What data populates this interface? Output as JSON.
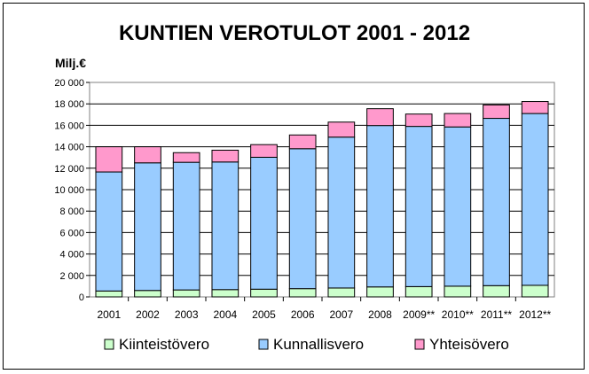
{
  "chart_data": {
    "type": "bar",
    "stacked": true,
    "title": "KUNTIEN VEROTULOT 2001 - 2012",
    "ylabel": "Milj.€",
    "xlabel": "",
    "ylim": [
      0,
      20000
    ],
    "ytick_step": 2000,
    "ytick_labels": [
      "0",
      "2 000",
      "4 000",
      "6 000",
      "8 000",
      "10 000",
      "12 000",
      "14 000",
      "16 000",
      "18 000",
      "20 000"
    ],
    "categories": [
      "2001",
      "2002",
      "2003",
      "2004",
      "2005",
      "2006",
      "2007",
      "2008",
      "2009**",
      "2010**",
      "2011**",
      "2012**"
    ],
    "series": [
      {
        "name": "Kiinteistövero",
        "color": "#ccffcc",
        "values": [
          550,
          600,
          650,
          680,
          720,
          770,
          830,
          930,
          960,
          1000,
          1050,
          1080
        ]
      },
      {
        "name": "Kunnallisvero",
        "color": "#99ccff",
        "values": [
          11100,
          11900,
          11900,
          11900,
          12300,
          13050,
          14070,
          15050,
          14940,
          14850,
          15600,
          16020
        ]
      },
      {
        "name": "Yhteisövero",
        "color": "#ff99cc",
        "values": [
          2350,
          1500,
          900,
          1100,
          1180,
          1280,
          1400,
          1570,
          1150,
          1250,
          1250,
          1120
        ]
      }
    ],
    "grid": true,
    "legend_position": "bottom"
  }
}
